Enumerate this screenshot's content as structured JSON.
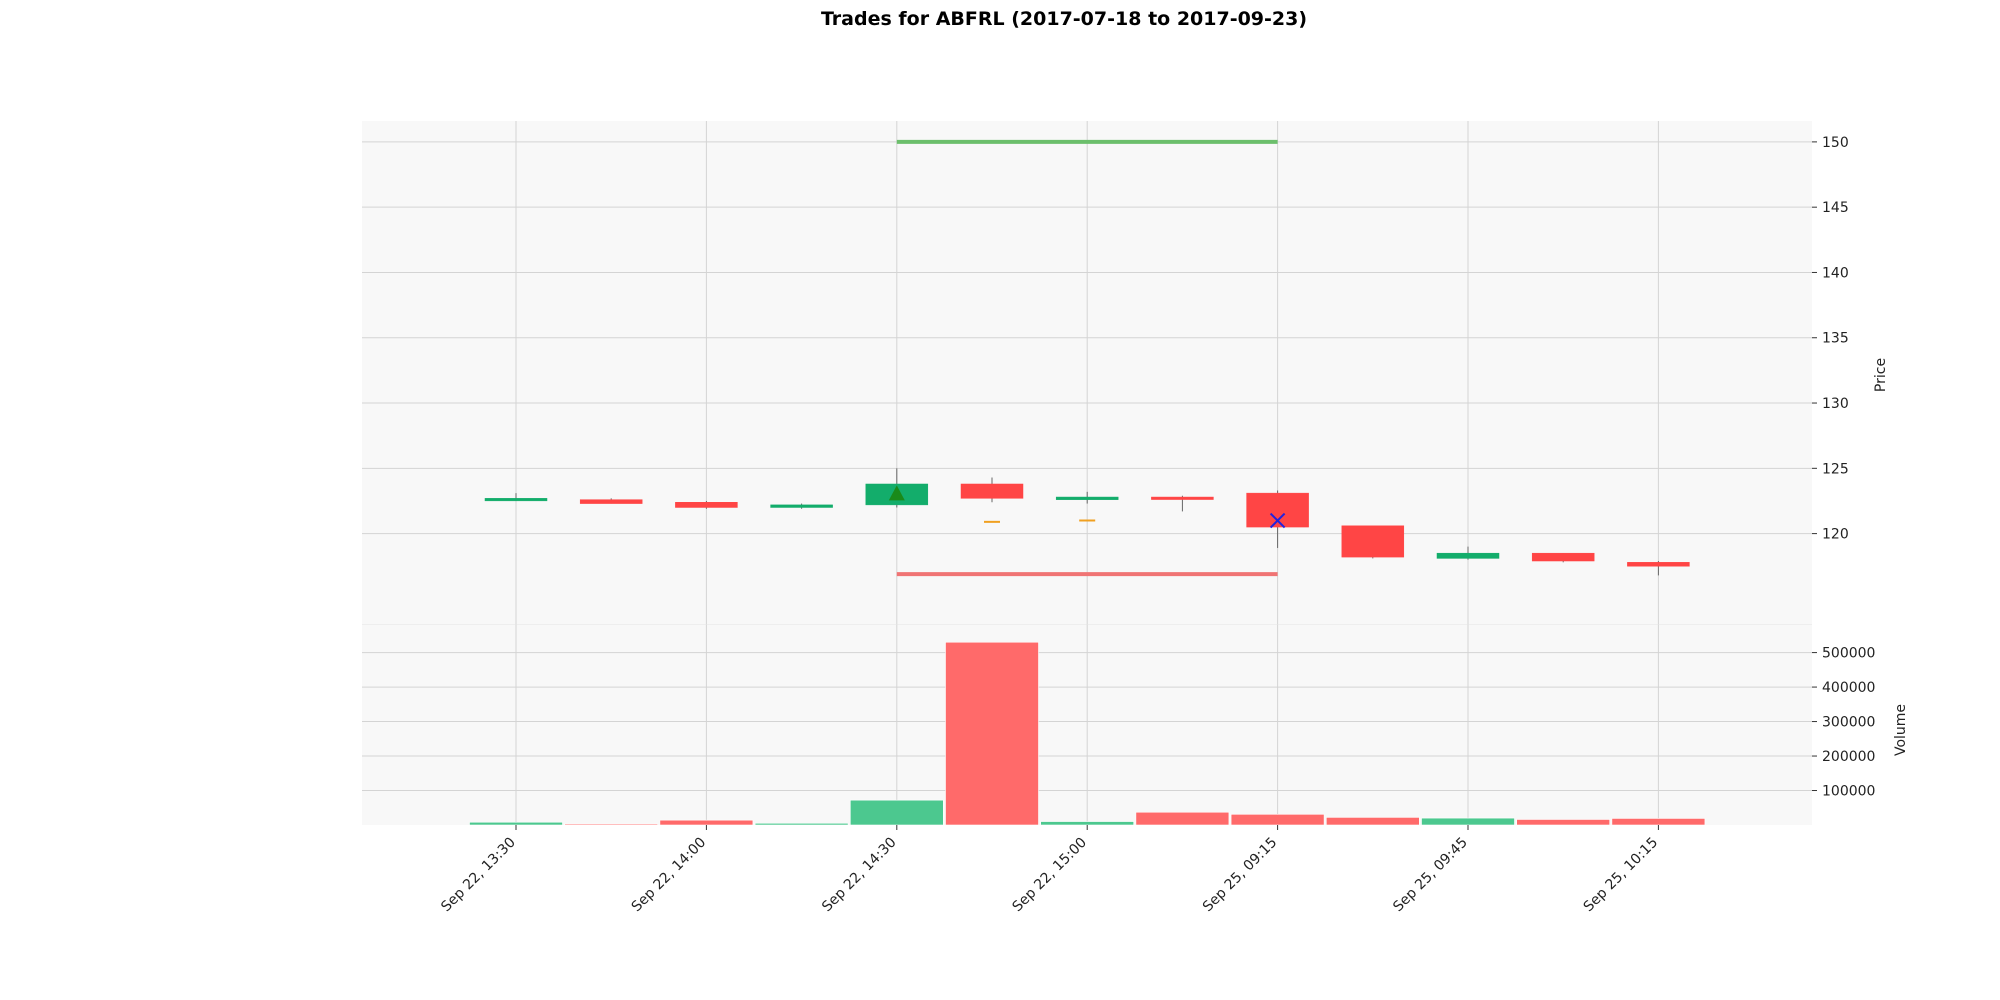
{
  "chart_data": {
    "type": "candlestick",
    "title": "Trades for ABFRL (2017-07-18 to 2017-09-23)",
    "x_tick_labels": [
      "Sep 22, 13:30",
      "Sep 22, 14:00",
      "Sep 22, 14:30",
      "Sep 22, 15:00",
      "Sep 25, 09:15",
      "Sep 25, 09:45",
      "Sep 25, 10:15"
    ],
    "x_tick_positions": [
      0,
      2,
      4,
      6,
      8,
      10,
      12
    ],
    "colors": {
      "up": "#13ad6b",
      "down": "#ff4545",
      "volume_up": "#4cc88f",
      "volume_down": "#ff6a6a",
      "panel_bg": "#f8f8f8",
      "grid": "#d4d4d4",
      "buy_marker": "#1a8a1a",
      "sell_marker": "#2222dd",
      "target_line": "#6cbf6c",
      "stop_line": "#f07474",
      "small_markers": "#f0a020"
    },
    "price_panel": {
      "ylabel": "Price",
      "ylim": [
        113,
        151.6
      ],
      "yticks": [
        120,
        125,
        130,
        135,
        140,
        145,
        150
      ],
      "candles": [
        {
          "open": 122.6,
          "high": 123.1,
          "low": 122.5,
          "close": 122.7
        },
        {
          "open": 122.6,
          "high": 122.7,
          "low": 122.3,
          "close": 122.3
        },
        {
          "open": 122.4,
          "high": 122.5,
          "low": 121.9,
          "close": 122.0
        },
        {
          "open": 122.0,
          "high": 122.3,
          "low": 121.9,
          "close": 122.2
        },
        {
          "open": 122.2,
          "high": 125.0,
          "low": 122.0,
          "close": 123.8
        },
        {
          "open": 123.8,
          "high": 124.3,
          "low": 122.4,
          "close": 122.7
        },
        {
          "open": 122.6,
          "high": 123.2,
          "low": 122.3,
          "close": 122.8
        },
        {
          "open": 122.8,
          "high": 122.9,
          "low": 121.7,
          "close": 122.7
        },
        {
          "open": 123.1,
          "high": 123.3,
          "low": 118.9,
          "close": 120.5
        },
        {
          "open": 120.6,
          "high": 120.6,
          "low": 118.1,
          "close": 118.2
        },
        {
          "open": 118.1,
          "high": 119.0,
          "low": 118.0,
          "close": 118.5
        },
        {
          "open": 118.5,
          "high": 118.5,
          "low": 117.8,
          "close": 117.9
        },
        {
          "open": 117.8,
          "high": 117.9,
          "low": 116.8,
          "close": 117.5
        }
      ],
      "markers": [
        {
          "type": "buy",
          "shape": "triangle-up",
          "x": 4,
          "y": 123.0
        },
        {
          "type": "sell",
          "shape": "x",
          "x": 8,
          "y": 121.0
        },
        {
          "type": "small",
          "shape": "dash",
          "x": 5,
          "y": 120.9
        },
        {
          "type": "small",
          "shape": "dash",
          "x": 6,
          "y": 121.0
        }
      ],
      "lines": [
        {
          "name": "target",
          "x_start": 4,
          "x_end": 8,
          "y": 150.0
        },
        {
          "name": "stop",
          "x_start": 4,
          "x_end": 8,
          "y": 116.9
        }
      ]
    },
    "volume_panel": {
      "ylabel": "Volume",
      "ylim": [
        0,
        580000
      ],
      "yticks": [
        100000,
        200000,
        300000,
        400000,
        500000
      ],
      "yticklabels": [
        "100000",
        "200000",
        "300000",
        "400000",
        "500000"
      ],
      "values": [
        8000,
        3000,
        14000,
        5000,
        72000,
        530000,
        10000,
        37000,
        31000,
        22000,
        20000,
        16000,
        19000
      ]
    },
    "grid": true
  }
}
